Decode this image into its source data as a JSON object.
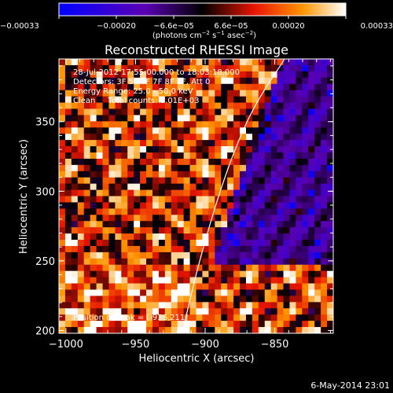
{
  "chart_data": {
    "type": "heatmap",
    "title": "Reconstructed RHESSI Image",
    "xlabel": "Heliocentric X (arcsec)",
    "ylabel": "Heliocentric Y (arcsec)",
    "xlim": [
      -1005,
      -808
    ],
    "ylim": [
      198,
      395
    ],
    "x_ticks": [
      "−1000",
      "−950",
      "−900",
      "−850"
    ],
    "x_tick_values": [
      -1000,
      -950,
      -900,
      -850
    ],
    "y_ticks": [
      "200",
      "250",
      "300",
      "350"
    ],
    "y_tick_values": [
      200,
      250,
      300,
      350
    ],
    "colorbar": {
      "range": [
        -0.00033,
        0.00033
      ],
      "ticks": [
        "−0.00033",
        "−0.00020",
        "−6.6e−05",
        "6.6e−05",
        "0.00020",
        "0.00033"
      ],
      "unit_parts": [
        "(photons cm",
        "−2",
        " s",
        "−1",
        " asec",
        "−2",
        ")"
      ],
      "colors": [
        "#0000ff",
        "#5a00b4",
        "#000000",
        "#e61400",
        "#ff9600",
        "#ffffff"
      ]
    },
    "annotations": [
      "28-Jul-2012 17:55:00.000 to 18:03:18.000",
      "Detectors: 3F 5F 6F 7F 8F 9F, Att 0",
      "Energy Range: 25.0 - 50.0 keV",
      "Clean     Total counts: 6.01E+03"
    ],
    "peak_label": "Position of Peak = [-936,211]",
    "date_stamp": "6-May-2014 23:01"
  }
}
